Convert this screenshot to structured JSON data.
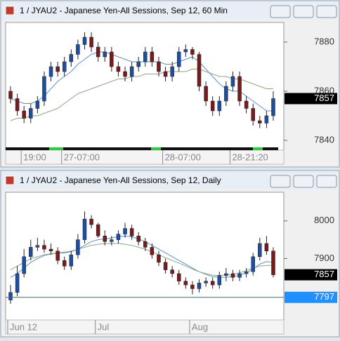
{
  "chart_data": [
    {
      "type": "candlestick",
      "title": "1 / JYAU2 - Japanese Yen-All Sessions, Sep 12, 60 Min",
      "categories": [
        null,
        null,
        "19:00",
        null,
        null,
        null,
        null,
        null,
        "27-07:00",
        null,
        null,
        null,
        null,
        null,
        null,
        null,
        null,
        null,
        null,
        null,
        null,
        null,
        null,
        "28-07:00",
        null,
        null,
        null,
        null,
        null,
        null,
        null,
        null,
        null,
        "28-21:20",
        null,
        null,
        null,
        null,
        null,
        null
      ],
      "open": [
        7860,
        7857,
        7852,
        7849,
        7853,
        7856,
        7866,
        7870,
        7868,
        7872,
        7875,
        7879,
        7882,
        7878,
        7874,
        7876,
        7870,
        7868,
        7866,
        7870,
        7872,
        7876,
        7872,
        7868,
        7866,
        7870,
        7876,
        7877,
        7875,
        7862,
        7856,
        7852,
        7856,
        7862,
        7866,
        7856,
        7853,
        7848,
        7847,
        7850
      ],
      "high": [
        7862,
        7859,
        7854,
        7855,
        7858,
        7868,
        7872,
        7872,
        7874,
        7877,
        7881,
        7884,
        7884,
        7880,
        7878,
        7878,
        7872,
        7870,
        7872,
        7874,
        7878,
        7878,
        7874,
        7870,
        7872,
        7878,
        7879,
        7878,
        7876,
        7864,
        7858,
        7858,
        7864,
        7868,
        7868,
        7858,
        7855,
        7850,
        7852,
        7860
      ],
      "low": [
        7855,
        7850,
        7847,
        7847,
        7851,
        7854,
        7864,
        7866,
        7866,
        7870,
        7873,
        7877,
        7876,
        7872,
        7872,
        7868,
        7866,
        7864,
        7864,
        7868,
        7870,
        7870,
        7866,
        7864,
        7864,
        7868,
        7874,
        7873,
        7860,
        7854,
        7850,
        7850,
        7854,
        7860,
        7854,
        7851,
        7846,
        7845,
        7845,
        7848
      ],
      "close": [
        7857,
        7852,
        7849,
        7853,
        7856,
        7866,
        7870,
        7868,
        7872,
        7875,
        7879,
        7882,
        7878,
        7874,
        7876,
        7870,
        7868,
        7866,
        7870,
        7872,
        7876,
        7872,
        7868,
        7866,
        7870,
        7876,
        7877,
        7875,
        7862,
        7856,
        7852,
        7856,
        7862,
        7866,
        7856,
        7853,
        7848,
        7847,
        7850,
        7857
      ],
      "up_color": "#1f4ea0",
      "down_color": "#7a1a1a",
      "moving_averages": [
        {
          "color": "#5b8fd6",
          "values": [
            7857,
            7856,
            7855,
            7855,
            7856,
            7858,
            7861,
            7864,
            7866,
            7868,
            7871,
            7873,
            7875,
            7876,
            7876,
            7875,
            7874,
            7873,
            7872,
            7872,
            7872,
            7872,
            7872,
            7871,
            7871,
            7872,
            7873,
            7874,
            7872,
            7869,
            7866,
            7863,
            7861,
            7860,
            7860,
            7858,
            7856,
            7854,
            7852,
            7852
          ]
        },
        {
          "color": "#8aa882",
          "values": [
            7848,
            7849,
            7849,
            7850,
            7850,
            7851,
            7852,
            7853,
            7855,
            7857,
            7859,
            7860,
            7861,
            7862,
            7863,
            7864,
            7865,
            7865,
            7866,
            7866,
            7867,
            7867,
            7867,
            7868,
            7868,
            7868,
            7868,
            7869,
            7869,
            7868,
            7867,
            7866,
            7866,
            7865,
            7865,
            7864,
            7863,
            7862,
            7861,
            7861
          ]
        }
      ],
      "ylim": [
        7836,
        7888
      ],
      "yticks": [
        7840,
        7860,
        7880
      ],
      "last_price": 7857
    },
    {
      "type": "candlestick",
      "title": "1 / JYAU2 - Japanese Yen-All Sessions, Sep 12, Daily",
      "categories": [
        "Jun 12",
        null,
        null,
        null,
        null,
        null,
        null,
        null,
        null,
        null,
        null,
        null,
        null,
        "Jul",
        null,
        null,
        null,
        null,
        null,
        null,
        null,
        null,
        null,
        null,
        null,
        null,
        null,
        "Aug",
        null,
        null,
        null,
        null,
        null,
        null,
        null,
        null,
        null,
        null,
        null,
        null
      ],
      "open": [
        7790,
        7810,
        7860,
        7905,
        7930,
        7935,
        7925,
        7920,
        7895,
        7880,
        7910,
        7950,
        8005,
        7990,
        7960,
        7945,
        7950,
        7965,
        7980,
        7960,
        7945,
        7930,
        7910,
        7890,
        7870,
        7860,
        7840,
        7830,
        7820,
        7835,
        7840,
        7830,
        7855,
        7860,
        7850,
        7860,
        7865,
        7905,
        7940,
        7920
      ],
      "high": [
        7830,
        7880,
        7925,
        7950,
        7955,
        7950,
        7940,
        7930,
        7905,
        7920,
        7965,
        8025,
        8015,
        7995,
        7975,
        7960,
        7975,
        7995,
        7990,
        7970,
        7955,
        7940,
        7920,
        7900,
        7880,
        7870,
        7850,
        7840,
        7845,
        7850,
        7850,
        7865,
        7875,
        7870,
        7870,
        7875,
        7915,
        7955,
        7960,
        7930
      ],
      "low": [
        7780,
        7800,
        7850,
        7895,
        7920,
        7915,
        7910,
        7885,
        7870,
        7870,
        7900,
        7940,
        7980,
        7955,
        7935,
        7935,
        7940,
        7955,
        7950,
        7935,
        7920,
        7900,
        7880,
        7860,
        7850,
        7830,
        7820,
        7805,
        7810,
        7825,
        7820,
        7820,
        7840,
        7840,
        7840,
        7850,
        7855,
        7895,
        7910,
        7850
      ],
      "close": [
        7810,
        7860,
        7905,
        7930,
        7935,
        7925,
        7920,
        7895,
        7880,
        7910,
        7950,
        8005,
        7990,
        7960,
        7945,
        7950,
        7965,
        7980,
        7960,
        7945,
        7930,
        7910,
        7890,
        7870,
        7860,
        7840,
        7830,
        7820,
        7835,
        7840,
        7830,
        7855,
        7860,
        7850,
        7860,
        7865,
        7905,
        7940,
        7920,
        7857
      ],
      "up_color": "#1f4ea0",
      "down_color": "#7a1a1a",
      "moving_averages": [
        {
          "color": "#5b8fd6",
          "values": [
            7850,
            7860,
            7875,
            7890,
            7900,
            7908,
            7912,
            7914,
            7915,
            7918,
            7925,
            7935,
            7945,
            7950,
            7952,
            7955,
            7958,
            7960,
            7958,
            7952,
            7945,
            7935,
            7925,
            7915,
            7905,
            7895,
            7885,
            7875,
            7865,
            7858,
            7852,
            7850,
            7850,
            7852,
            7856,
            7862,
            7872,
            7885,
            7892,
            7890
          ]
        },
        {
          "color": "#8aa882",
          "values": [
            7870,
            7880,
            7890,
            7900,
            7905,
            7910,
            7913,
            7915,
            7917,
            7920,
            7925,
            7930,
            7935,
            7938,
            7940,
            7940,
            7940,
            7938,
            7935,
            7930,
            7925,
            7918,
            7910,
            7902,
            7895,
            7888,
            7880,
            7872,
            7865,
            7860,
            7856,
            7855,
            7856,
            7858,
            7862,
            7868,
            7875,
            7880,
            7882,
            7882
          ]
        }
      ],
      "ylim": [
        7737,
        8076
      ],
      "yticks": [
        7900,
        8000
      ],
      "last_price": 7857,
      "hline": 7797,
      "hline_color": "#1e90ff"
    }
  ]
}
